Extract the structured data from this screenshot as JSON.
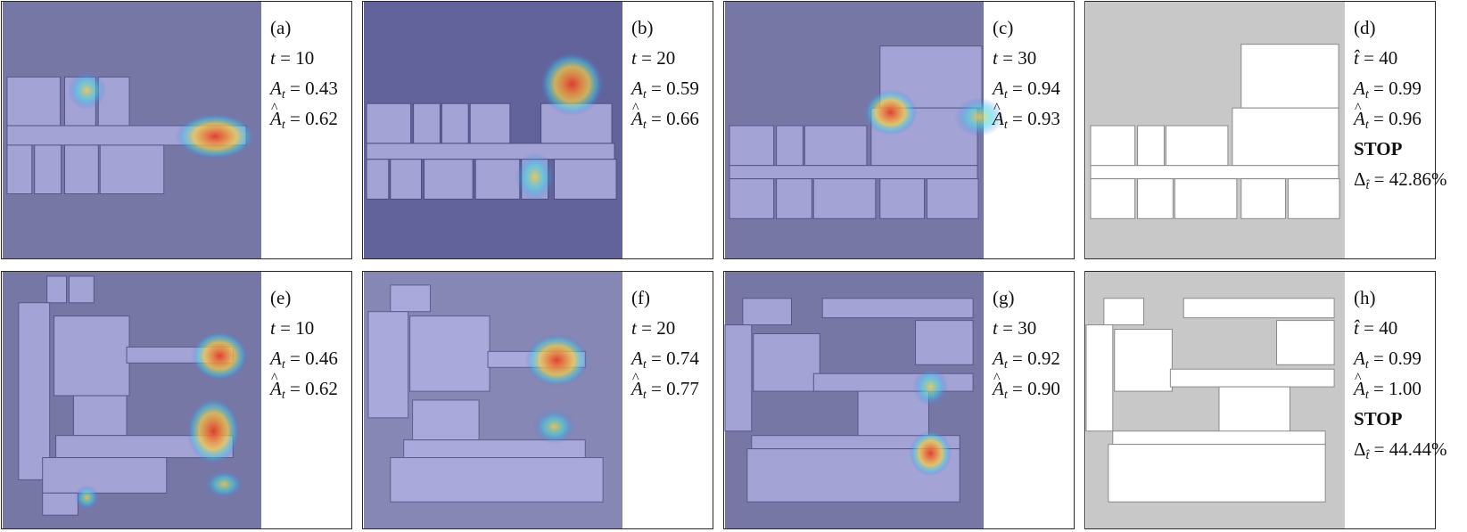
{
  "colors": {
    "background_overlay": "#7777a6",
    "background_overlay_dark": "#62639a",
    "map_free": "#a3a3d6",
    "map_final": "#ffffff",
    "map_final_bg": "#c8c8c8",
    "heat_hot": "#e03c2c",
    "heat_warm": "#f3d24a",
    "heat_cool": "#3cd6e6"
  },
  "panels": [
    {
      "label": "(a)",
      "t_sym": "t",
      "t": "10",
      "A": "0.43",
      "Ahat": "0.62"
    },
    {
      "label": "(b)",
      "t_sym": "t",
      "t": "20",
      "A": "0.59",
      "Ahat": "0.66"
    },
    {
      "label": "(c)",
      "t_sym": "t",
      "t": "30",
      "A": "0.94",
      "Ahat": "0.93"
    },
    {
      "label": "(d)",
      "t_sym": "t̂",
      "t": "40",
      "A": "0.99",
      "Ahat": "0.96",
      "stop": "STOP",
      "delta": "42.86%"
    },
    {
      "label": "(e)",
      "t_sym": "t",
      "t": "10",
      "A": "0.46",
      "Ahat": "0.62"
    },
    {
      "label": "(f)",
      "t_sym": "t",
      "t": "20",
      "A": "0.74",
      "Ahat": "0.77"
    },
    {
      "label": "(g)",
      "t_sym": "t",
      "t": "30",
      "A": "0.92",
      "Ahat": "0.90"
    },
    {
      "label": "(h)",
      "t_sym": "t̂",
      "t": "40",
      "A": "0.99",
      "Ahat": "1.00",
      "stop": "STOP",
      "delta": "44.44%"
    }
  ]
}
